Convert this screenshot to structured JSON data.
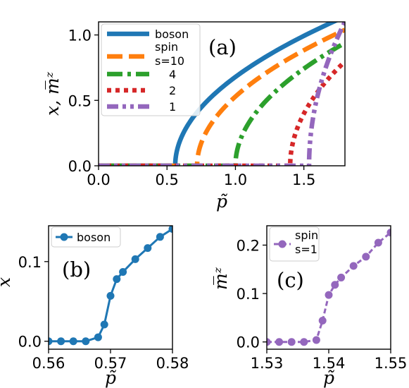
{
  "chart_data": [
    {
      "panel": "(a)",
      "type": "line",
      "xlabel": "p̃",
      "ylabel": "x, m̅ᶻ",
      "xlim": [
        0.0,
        1.8
      ],
      "ylim": [
        0.0,
        1.1
      ],
      "xticks": [
        "0.0",
        "0.5",
        "1.0",
        "1.5"
      ],
      "yticks": [
        "0.0",
        "0.5",
        "1.0"
      ],
      "grid": false,
      "legend_position": "top-left",
      "series": [
        {
          "name": "boson",
          "label_lines": [
            "boson"
          ],
          "color": "#1f77b4",
          "dash": "solid",
          "pc": 0.56,
          "amp": 1.024,
          "x": [
            0,
            0.56,
            0.6,
            0.7,
            0.8,
            0.9,
            1.0,
            1.1,
            1.2,
            1.3,
            1.4,
            1.5
          ],
          "y": [
            0,
            0,
            0.205,
            0.416,
            0.55,
            0.597,
            0.68,
            0.76,
            0.83,
            0.9,
            0.96,
            1.02
          ]
        },
        {
          "name": "spin s=10",
          "label_lines": [
            "spin",
            "s=10"
          ],
          "color": "#ff7f0e",
          "dash": "dashed",
          "pc": 0.72,
          "amp": 1.0,
          "x": [
            0,
            0.72,
            0.8,
            0.9,
            1.0,
            1.1,
            1.2,
            1.3,
            1.4,
            1.5,
            1.6,
            1.7,
            1.8
          ],
          "y": [
            0,
            0,
            0.28,
            0.42,
            0.53,
            0.62,
            0.69,
            0.76,
            0.82,
            0.88,
            0.94,
            0.99,
            1.04
          ]
        },
        {
          "name": "4",
          "label_lines": [
            "4"
          ],
          "color": "#2ca02c",
          "dash": "dashdot",
          "pc": 1.0,
          "amp": 1.05,
          "x": [
            0,
            1.0,
            1.1,
            1.2,
            1.3,
            1.4,
            1.5,
            1.6,
            1.7,
            1.8
          ],
          "y": [
            0,
            0,
            0.33,
            0.47,
            0.57,
            0.66,
            0.74,
            0.81,
            0.87,
            0.94
          ]
        },
        {
          "name": "2",
          "label_lines": [
            "2"
          ],
          "color": "#d62728",
          "dash": "dotted",
          "pc": 1.4,
          "amp": 1.26,
          "x": [
            0,
            1.4,
            1.5,
            1.6,
            1.7,
            1.8
          ],
          "y": [
            0,
            0,
            0.4,
            0.56,
            0.69,
            0.8
          ]
        },
        {
          "name": "1",
          "label_lines": [
            "1"
          ],
          "color": "#9467bd",
          "dash": "dashdotdot",
          "pc": 1.538,
          "amp": 2.15,
          "x": [
            0,
            1.538,
            1.6,
            1.7,
            1.78
          ],
          "y": [
            0,
            0,
            0.54,
            0.86,
            1.07
          ]
        }
      ]
    },
    {
      "panel": "(b)",
      "type": "line",
      "xlabel": "p̃",
      "ylabel": "x",
      "xlim": [
        0.56,
        0.58
      ],
      "ylim": [
        -0.01,
        0.145
      ],
      "xticks": [
        "0.56",
        "0.57",
        "0.58"
      ],
      "yticks": [
        "0.0",
        "0.1"
      ],
      "legend_position": "top-left",
      "series": [
        {
          "name": "boson",
          "label_lines": [
            "boson"
          ],
          "color": "#1f77b4",
          "dash": "solid",
          "markers": true,
          "x": [
            0.56,
            0.562,
            0.564,
            0.566,
            0.568,
            0.569,
            0.57,
            0.571,
            0.572,
            0.574,
            0.576,
            0.578,
            0.58
          ],
          "y": [
            0,
            0,
            0,
            0,
            0.005,
            0.021,
            0.057,
            0.078,
            0.087,
            0.103,
            0.117,
            0.131,
            0.141
          ]
        }
      ]
    },
    {
      "panel": "(c)",
      "type": "line",
      "xlabel": "p̃",
      "ylabel": "m̅ᶻ",
      "xlim": [
        1.53,
        1.55
      ],
      "ylim": [
        -0.015,
        0.24
      ],
      "xticks": [
        "1.53",
        "1.54",
        "1.55"
      ],
      "yticks": [
        "0.0",
        "0.1",
        "0.2"
      ],
      "legend_position": "top-left",
      "series": [
        {
          "name": "spin s=1",
          "label_lines": [
            "spin",
            "s=1"
          ],
          "color": "#9467bd",
          "dash": "dashed",
          "markers": true,
          "x": [
            1.53,
            1.532,
            1.534,
            1.536,
            1.538,
            1.539,
            1.54,
            1.541,
            1.542,
            1.544,
            1.546,
            1.548,
            1.55
          ],
          "y": [
            0,
            0,
            0,
            0,
            0.004,
            0.044,
            0.097,
            0.118,
            0.133,
            0.157,
            0.176,
            0.205,
            0.226
          ]
        }
      ]
    }
  ]
}
